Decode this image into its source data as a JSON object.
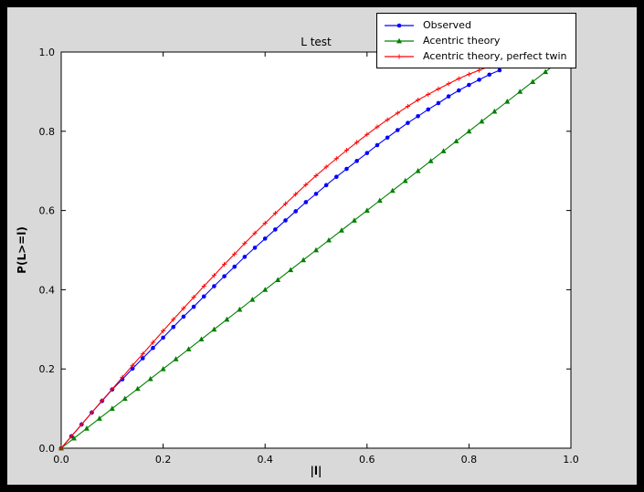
{
  "chart_data": {
    "type": "line",
    "title": "L test",
    "xlabel": "|l|",
    "ylabel": "P(L>=l)",
    "xlim": [
      0.0,
      1.0
    ],
    "ylim": [
      0.0,
      1.0
    ],
    "x_ticks": [
      0.0,
      0.2,
      0.4,
      0.6,
      0.8,
      1.0
    ],
    "y_ticks": [
      0.0,
      0.2,
      0.4,
      0.6,
      0.8,
      1.0
    ],
    "grid": false,
    "legend_position": "top-right",
    "colors": {
      "axes_background": "#ffffff",
      "figure_background": "#d9d9d9",
      "frame": "#000000"
    },
    "series": [
      {
        "name": "Observed",
        "color": "#0000ff",
        "marker": "circle",
        "x": [
          0,
          0.02,
          0.04,
          0.06,
          0.08,
          0.1,
          0.12,
          0.14,
          0.16,
          0.18,
          0.2,
          0.22,
          0.24,
          0.26,
          0.28,
          0.3,
          0.32,
          0.34,
          0.36,
          0.38,
          0.4,
          0.42,
          0.44,
          0.46,
          0.48,
          0.5,
          0.52,
          0.54,
          0.56,
          0.58,
          0.6,
          0.62,
          0.64,
          0.66,
          0.68,
          0.7,
          0.72,
          0.74,
          0.76,
          0.78,
          0.8,
          0.82,
          0.84,
          0.86
        ],
        "y": [
          0,
          0.03,
          0.06,
          0.09,
          0.119,
          0.148,
          0.174,
          0.201,
          0.227,
          0.253,
          0.279,
          0.306,
          0.332,
          0.357,
          0.383,
          0.409,
          0.434,
          0.458,
          0.483,
          0.506,
          0.529,
          0.552,
          0.575,
          0.598,
          0.621,
          0.642,
          0.664,
          0.685,
          0.705,
          0.725,
          0.745,
          0.765,
          0.784,
          0.803,
          0.821,
          0.838,
          0.855,
          0.871,
          0.888,
          0.903,
          0.917,
          0.93,
          0.943,
          0.954
        ]
      },
      {
        "name": "Acentric theory",
        "color": "#008000",
        "marker": "triangle",
        "x": [
          0,
          0.025,
          0.05,
          0.075,
          0.1,
          0.125,
          0.15,
          0.175,
          0.2,
          0.225,
          0.25,
          0.275,
          0.3,
          0.325,
          0.35,
          0.375,
          0.4,
          0.425,
          0.45,
          0.475,
          0.5,
          0.525,
          0.55,
          0.575,
          0.6,
          0.625,
          0.65,
          0.675,
          0.7,
          0.725,
          0.75,
          0.775,
          0.8,
          0.825,
          0.85,
          0.875,
          0.9,
          0.925,
          0.95,
          0.975
        ],
        "y": [
          0,
          0.025,
          0.05,
          0.075,
          0.1,
          0.125,
          0.15,
          0.175,
          0.2,
          0.225,
          0.25,
          0.275,
          0.3,
          0.325,
          0.35,
          0.375,
          0.4,
          0.425,
          0.45,
          0.475,
          0.5,
          0.525,
          0.55,
          0.575,
          0.6,
          0.625,
          0.65,
          0.675,
          0.7,
          0.725,
          0.75,
          0.775,
          0.8,
          0.825,
          0.85,
          0.875,
          0.9,
          0.925,
          0.95,
          0.975
        ]
      },
      {
        "name": "Acentric theory, perfect twin",
        "color": "#ff0000",
        "marker": "plus",
        "x": [
          0,
          0.02,
          0.04,
          0.06,
          0.08,
          0.1,
          0.12,
          0.14,
          0.16,
          0.18,
          0.2,
          0.22,
          0.24,
          0.26,
          0.28,
          0.3,
          0.32,
          0.34,
          0.36,
          0.38,
          0.4,
          0.42,
          0.44,
          0.46,
          0.48,
          0.5,
          0.52,
          0.54,
          0.56,
          0.58,
          0.6,
          0.62,
          0.64,
          0.66,
          0.68,
          0.7,
          0.72,
          0.74,
          0.76,
          0.78,
          0.8,
          0.82,
          0.84,
          0.86,
          0.88
        ],
        "y": [
          0,
          0.03,
          0.06,
          0.09,
          0.12,
          0.149,
          0.179,
          0.209,
          0.238,
          0.267,
          0.296,
          0.325,
          0.353,
          0.381,
          0.409,
          0.436,
          0.464,
          0.49,
          0.517,
          0.543,
          0.568,
          0.593,
          0.617,
          0.641,
          0.665,
          0.688,
          0.71,
          0.731,
          0.752,
          0.772,
          0.792,
          0.811,
          0.829,
          0.846,
          0.863,
          0.879,
          0.893,
          0.907,
          0.92,
          0.933,
          0.944,
          0.954,
          0.964,
          0.972,
          0.979
        ]
      }
    ]
  }
}
